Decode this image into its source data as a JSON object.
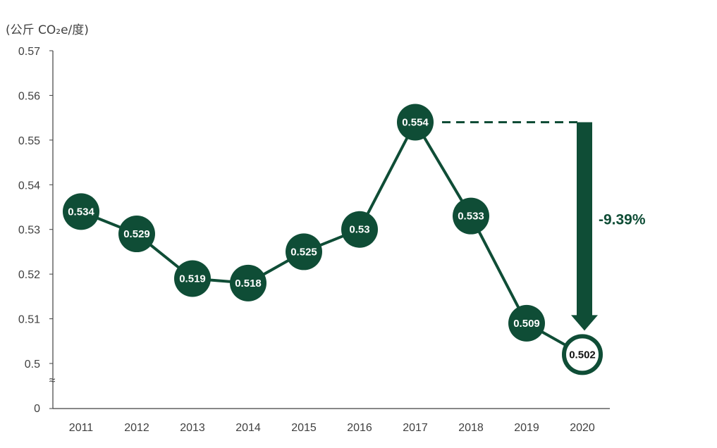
{
  "chart_data": {
    "type": "line",
    "unit_label": "(公斤 CO₂e/度)",
    "categories": [
      "2011",
      "2012",
      "2013",
      "2014",
      "2015",
      "2016",
      "2017",
      "2018",
      "2019",
      "2020"
    ],
    "values": [
      0.534,
      0.529,
      0.519,
      0.518,
      0.525,
      0.53,
      0.554,
      0.533,
      0.509,
      0.502
    ],
    "value_labels": [
      "0.534",
      "0.529",
      "0.519",
      "0.518",
      "0.525",
      "0.53",
      "0.554",
      "0.533",
      "0.509",
      "0.502"
    ],
    "y_ticks": [
      {
        "value": 0.5,
        "label": "0.5"
      },
      {
        "value": 0.51,
        "label": "0.51"
      },
      {
        "value": 0.52,
        "label": "0.52"
      },
      {
        "value": 0.53,
        "label": "0.53"
      },
      {
        "value": 0.54,
        "label": "0.54"
      },
      {
        "value": 0.55,
        "label": "0.55"
      },
      {
        "value": 0.56,
        "label": "0.56"
      },
      {
        "value": 0.57,
        "label": "0.57"
      }
    ],
    "y_zero_label": "0",
    "axis_break_symbol": "≈",
    "ylim": [
      0.5,
      0.57
    ],
    "grid": false,
    "annotation": {
      "text": "-9.39%",
      "from_category": "2017",
      "to_category": "2020",
      "from_value": 0.554,
      "to_value": 0.502
    },
    "colors": {
      "series": "#0f4d36",
      "highlight_fill": "#ffffff",
      "highlight_text": "#111111",
      "point_text": "#ffffff",
      "axis": "#404040"
    },
    "highlight_category": "2020"
  }
}
